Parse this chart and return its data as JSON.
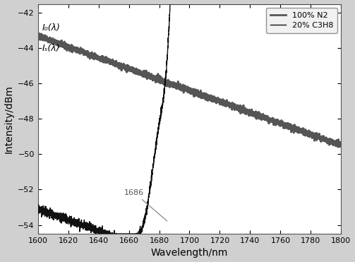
{
  "title": "",
  "xlabel": "Wavelength/nm",
  "ylabel": "Intensity/dBm",
  "xlim": [
    1600,
    1800
  ],
  "ylim": [
    -54.5,
    -41.5
  ],
  "yticks": [
    -42,
    -44,
    -46,
    -48,
    -50,
    -52,
    -54
  ],
  "xticks": [
    1600,
    1620,
    1640,
    1660,
    1680,
    1700,
    1720,
    1740,
    1760,
    1780,
    1800
  ],
  "legend_labels": [
    "100% N2",
    "20% C3H8"
  ],
  "label_I0": "I₀(λ)",
  "label_Is": "Iₛ(λ)",
  "annotation_text": "1686",
  "bg_color": "#ffffff",
  "fig_color": "#d0d0d0",
  "line_color_N2": "#555555",
  "line_color_C3H8": "#111111",
  "noise_seed": 7
}
